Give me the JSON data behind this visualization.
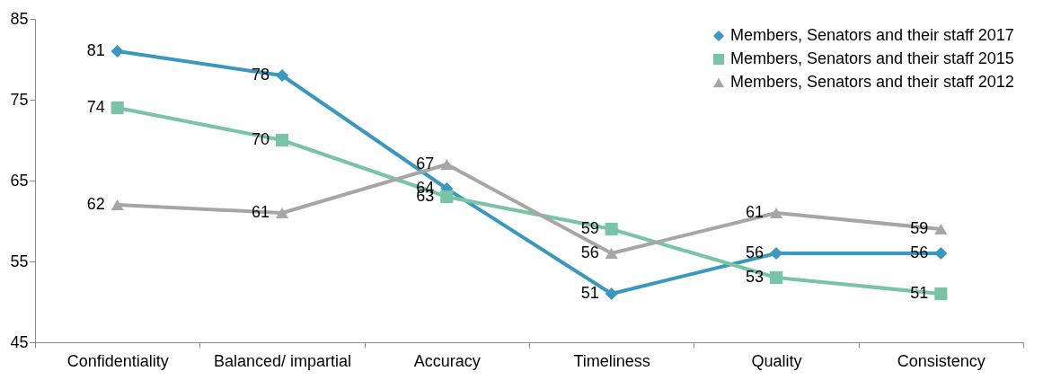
{
  "chart_data": {
    "type": "line",
    "categories": [
      "Confidentiality",
      "Balanced/ impartial",
      "Accuracy",
      "Timeliness",
      "Quality",
      "Consistency"
    ],
    "ylim": [
      45,
      85
    ],
    "yticks": [
      45,
      55,
      65,
      75,
      85
    ],
    "legend": "top right",
    "data_labels": true,
    "series": [
      {
        "name": "Members, Senators and their staff 2017",
        "color": "#3a98bf",
        "marker": "diamond",
        "values": [
          81,
          78,
          64,
          51,
          56,
          56
        ]
      },
      {
        "name": "Members, Senators and their staff 2015",
        "color": "#79c4a7",
        "marker": "square",
        "values": [
          74,
          70,
          63,
          59,
          53,
          51
        ]
      },
      {
        "name": "Members, Senators and their staff 2012",
        "color": "#a6a6a6",
        "marker": "triangle",
        "values": [
          62,
          61,
          67,
          56,
          61,
          59
        ]
      }
    ]
  }
}
